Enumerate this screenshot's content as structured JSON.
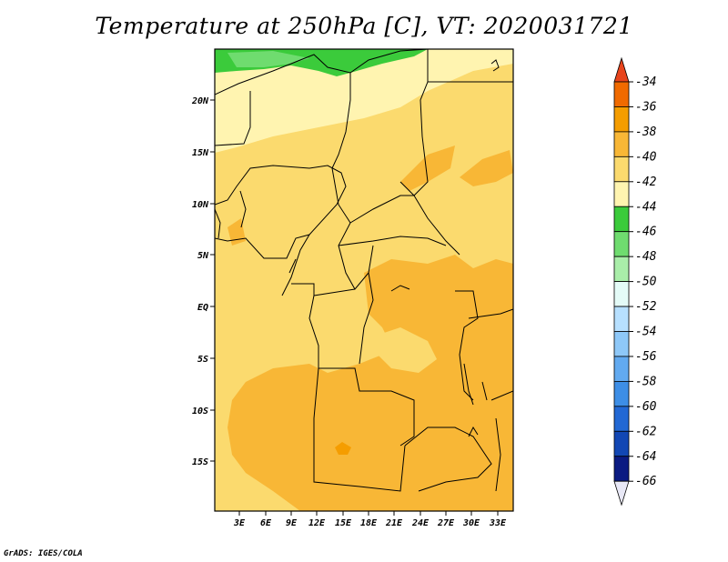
{
  "title": "Temperature at 250hPa [C], VT: 2020031721",
  "footer": "GrADS: IGES/COLA",
  "map": {
    "lat_ticks": [
      "20N",
      "15N",
      "10N",
      "5N",
      "EQ",
      "5S",
      "10S",
      "15S"
    ],
    "lon_ticks": [
      "3E",
      "6E",
      "9E",
      "12E",
      "15E",
      "18E",
      "21E",
      "24E",
      "27E",
      "30E",
      "33E"
    ]
  },
  "colorbar": {
    "labels": [
      "-34",
      "-36",
      "-38",
      "-40",
      "-42",
      "-44",
      "-46",
      "-48",
      "-50",
      "-52",
      "-54",
      "-56",
      "-58",
      "-60",
      "-62",
      "-64",
      "-66"
    ],
    "colors": [
      "#e8441c",
      "#f06a00",
      "#f59d00",
      "#f8b736",
      "#fbda6e",
      "#fff4b0",
      "#3bcb3b",
      "#6fdc6f",
      "#a9eea9",
      "#e4fbf7",
      "#b7e0ff",
      "#8ec8f8",
      "#62aaf0",
      "#3d8ee6",
      "#2268d4",
      "#1247b4",
      "#0b1b82",
      "#e8e8f6"
    ]
  },
  "field_colors": {
    "base": "#fbda6e",
    "warm": "#f8b736",
    "warmest": "#f59d00",
    "cool": "#fff4b0",
    "green": "#3bcb3b",
    "light_green": "#6fdc6f"
  }
}
